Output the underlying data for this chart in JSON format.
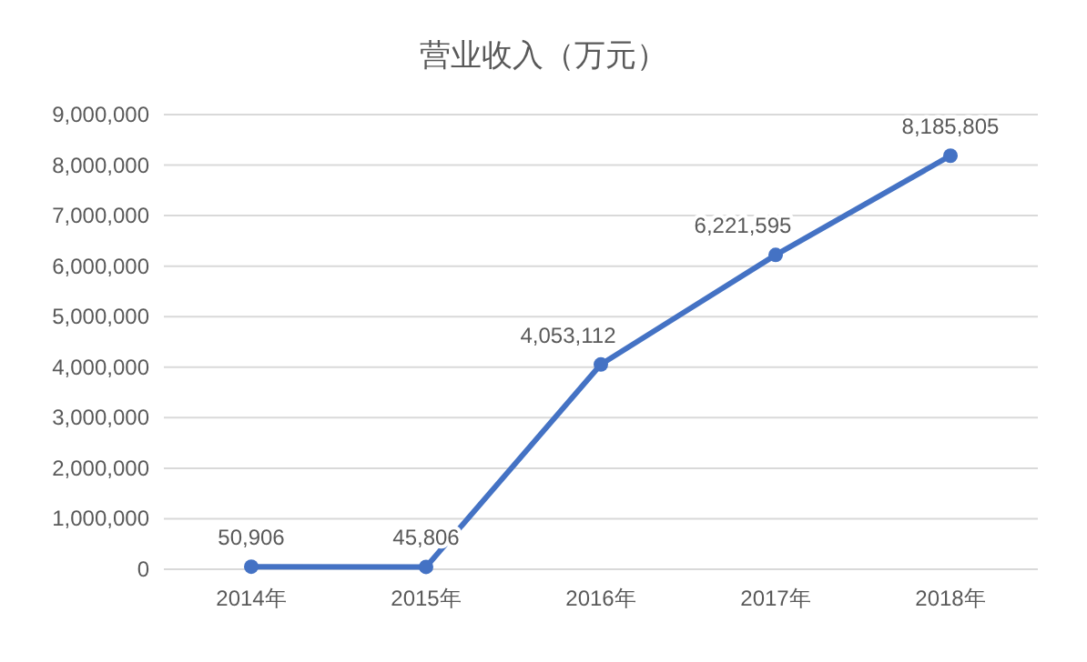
{
  "chart_data": {
    "type": "line",
    "title": "营业收入（万元）",
    "categories": [
      "2014年",
      "2015年",
      "2016年",
      "2017年",
      "2018年"
    ],
    "series": [
      {
        "color": "#4472c4",
        "values": [
          50906,
          45806,
          4053112,
          6221595,
          8185805
        ],
        "value_labels": [
          "50,906",
          "45,806",
          "4,053,112",
          "6,221,595",
          "8,185,805"
        ]
      }
    ],
    "ylim": [
      0,
      9000000
    ],
    "yticks": [
      {
        "value": 0,
        "label": "0"
      },
      {
        "value": 1000000,
        "label": "1,000,000"
      },
      {
        "value": 2000000,
        "label": "2,000,000"
      },
      {
        "value": 3000000,
        "label": "3,000,000"
      },
      {
        "value": 4000000,
        "label": "4,000,000"
      },
      {
        "value": 5000000,
        "label": "5,000,000"
      },
      {
        "value": 6000000,
        "label": "6,000,000"
      },
      {
        "value": 7000000,
        "label": "7,000,000"
      },
      {
        "value": 8000000,
        "label": "8,000,000"
      },
      {
        "value": 9000000,
        "label": "9,000,000"
      }
    ],
    "grid": "y",
    "marker": "circle",
    "line_style": "solid"
  }
}
